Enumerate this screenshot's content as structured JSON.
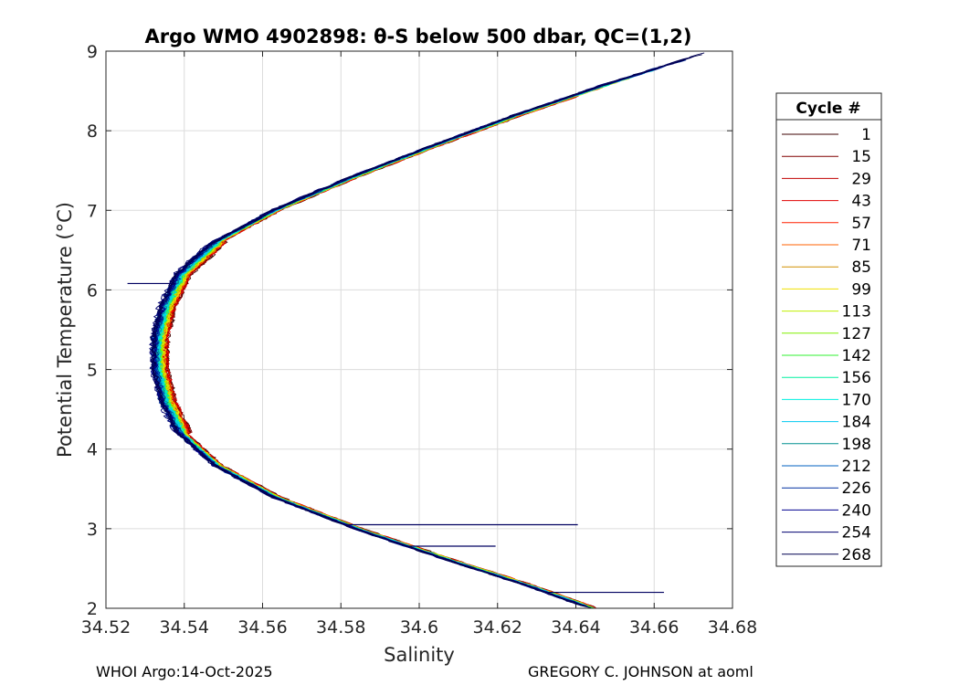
{
  "chart_data": {
    "type": "line",
    "title": "Argo WMO 4902898: θ-S below 500 dbar,  QC=(1,2)",
    "xlabel": "Salinity",
    "ylabel": "Potential Temperature (°C)",
    "xlim": [
      34.52,
      34.68
    ],
    "ylim": [
      2,
      9
    ],
    "x_ticks": [
      "34.52",
      "34.54",
      "34.56",
      "34.58",
      "34.6",
      "34.62",
      "34.64",
      "34.66",
      "34.68"
    ],
    "y_ticks": [
      "2",
      "3",
      "4",
      "5",
      "6",
      "7",
      "8",
      "9"
    ],
    "grid": true,
    "legend_title": "Cycle #",
    "legend_position": "outside-right",
    "series": [
      {
        "name": "1",
        "color": "#3c0000"
      },
      {
        "name": "15",
        "color": "#800000"
      },
      {
        "name": "29",
        "color": "#c00000"
      },
      {
        "name": "43",
        "color": "#e00000"
      },
      {
        "name": "57",
        "color": "#ff2000"
      },
      {
        "name": "71",
        "color": "#ff6000"
      },
      {
        "name": "85",
        "color": "#d09000"
      },
      {
        "name": "99",
        "color": "#f0e000"
      },
      {
        "name": "113",
        "color": "#c0f000"
      },
      {
        "name": "127",
        "color": "#80f000"
      },
      {
        "name": "142",
        "color": "#30f030"
      },
      {
        "name": "156",
        "color": "#00f0a0"
      },
      {
        "name": "170",
        "color": "#00f0e0"
      },
      {
        "name": "184",
        "color": "#00c8f0"
      },
      {
        "name": "198",
        "color": "#009090"
      },
      {
        "name": "212",
        "color": "#0060c0"
      },
      {
        "name": "226",
        "color": "#0030a0"
      },
      {
        "name": "240",
        "color": "#000090"
      },
      {
        "name": "254",
        "color": "#000070"
      },
      {
        "name": "268",
        "color": "#000050"
      }
    ],
    "mean_curve": {
      "theta": [
        2.0,
        2.3,
        2.6,
        3.0,
        3.4,
        3.8,
        4.2,
        4.6,
        5.0,
        5.4,
        5.8,
        6.2,
        6.6,
        7.0,
        7.4,
        7.8,
        8.2,
        8.6,
        9.0
      ],
      "salinity": [
        34.644,
        34.627,
        34.608,
        34.584,
        34.563,
        34.548,
        34.539,
        34.535,
        34.533,
        34.533,
        34.535,
        34.539,
        34.548,
        34.563,
        34.582,
        34.603,
        34.625,
        34.649,
        34.675
      ]
    },
    "spikes": [
      {
        "theta": 3.05,
        "salinity": 34.6405
      },
      {
        "theta": 2.78,
        "salinity": 34.6195
      },
      {
        "theta": 2.2,
        "salinity": 34.6625
      },
      {
        "theta": 6.08,
        "salinity": 34.5255
      }
    ]
  },
  "footer": {
    "left": "WHOI Argo:14-Oct-2025",
    "right": "GREGORY C. JOHNSON at aoml"
  }
}
